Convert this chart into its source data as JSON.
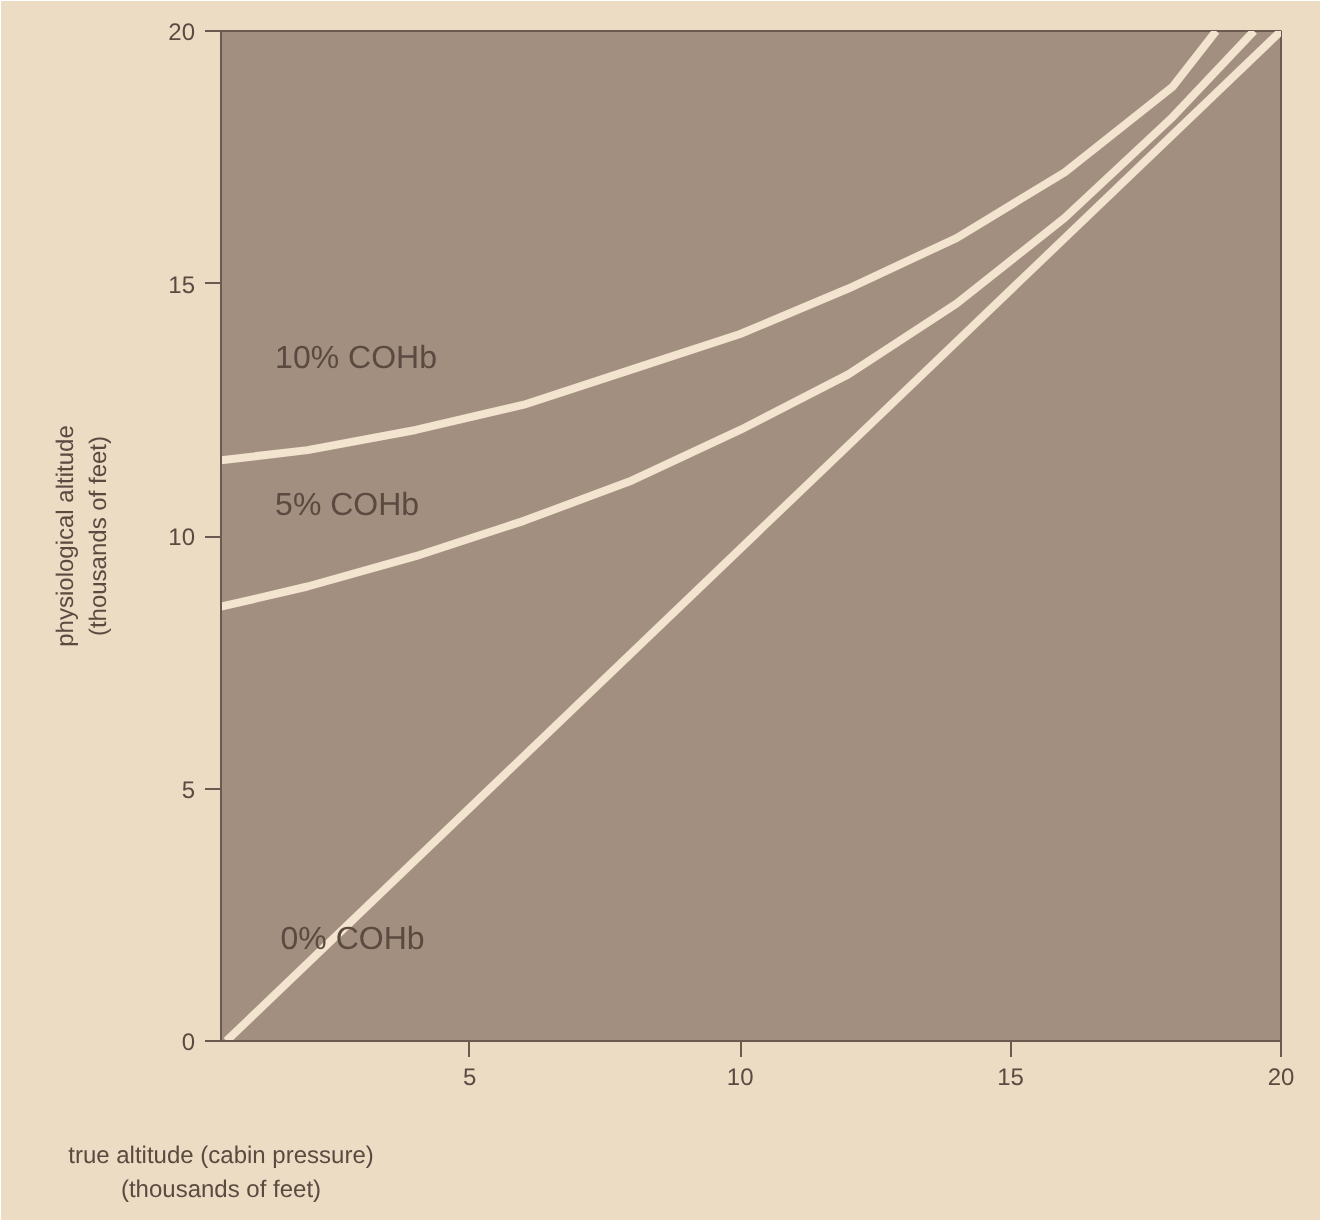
{
  "chart_data": {
    "type": "line",
    "xlabel": "true altitude (cabin pressure)\n(thousands of feet)",
    "ylabel": "physiological altitude\n(thousands of feet)",
    "xlim": [
      0.4,
      20
    ],
    "ylim": [
      0,
      20
    ],
    "xticks": [
      5,
      10,
      15,
      20
    ],
    "yticks": [
      0,
      5,
      10,
      15,
      20
    ],
    "grid": false,
    "legend": false,
    "marker": "none",
    "line_style": "solid",
    "series": [
      {
        "name": "10% COHb",
        "color": "#f2e4cf",
        "x": [
          0.4,
          2,
          4,
          6,
          8,
          10,
          12,
          14,
          16,
          18,
          18.8
        ],
        "values": [
          11.5,
          11.7,
          12.1,
          12.6,
          13.3,
          14.0,
          14.9,
          15.9,
          17.2,
          18.9,
          20
        ]
      },
      {
        "name": "5% COHb",
        "color": "#f2e4cf",
        "x": [
          0.4,
          2,
          4,
          6,
          8,
          10,
          12,
          14,
          16,
          18,
          19.5
        ],
        "values": [
          8.6,
          9.0,
          9.6,
          10.3,
          11.1,
          12.1,
          13.2,
          14.6,
          16.3,
          18.3,
          20
        ]
      },
      {
        "name": "0% COHb",
        "color": "#f2e4cf",
        "x": [
          0.5,
          20
        ],
        "values": [
          0,
          20
        ]
      }
    ]
  }
}
